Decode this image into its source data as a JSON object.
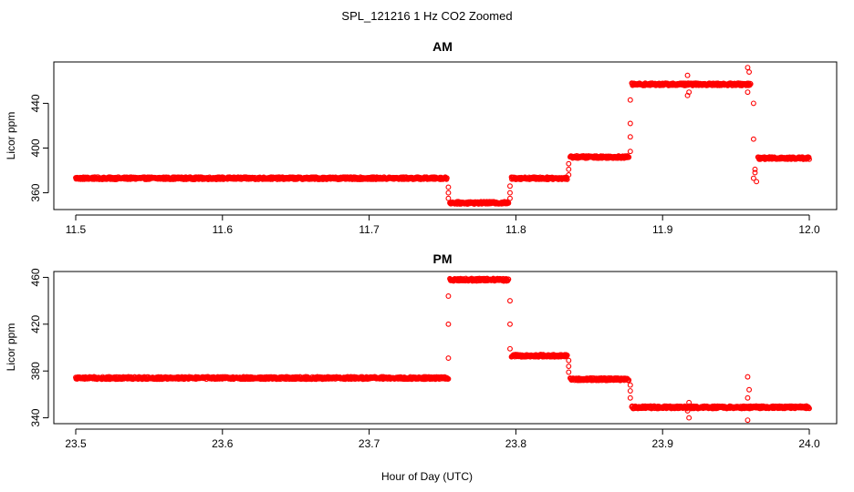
{
  "figure": {
    "title": "SPL_121216  1 Hz CO2 Zoomed",
    "xlabel": "Hour of Day (UTC)"
  },
  "chart_data": [
    {
      "type": "scatter",
      "title": "AM",
      "ylabel": "Licor ppm",
      "xlim": [
        11.5,
        12.0
      ],
      "ylim": [
        345,
        477
      ],
      "xticks": [
        "11.5",
        "11.6",
        "11.7",
        "11.8",
        "11.9",
        "12.0"
      ],
      "yticks": [
        "360",
        "400",
        "440"
      ],
      "series_color": "#ff0000",
      "levels": [
        {
          "x_start": 11.5,
          "x_end": 11.753,
          "y": 373
        },
        {
          "x_start": 11.755,
          "x_end": 11.795,
          "y": 351
        },
        {
          "x_start": 11.797,
          "x_end": 11.835,
          "y": 373
        },
        {
          "x_start": 11.837,
          "x_end": 11.877,
          "y": 392
        },
        {
          "x_start": 11.879,
          "x_end": 11.96,
          "y": 457
        },
        {
          "x_start": 11.965,
          "x_end": 12.0,
          "y": 391
        }
      ],
      "transitions": [
        {
          "x": 11.754,
          "y": [
            365,
            360,
            355
          ]
        },
        {
          "x": 11.796,
          "y": [
            355,
            360,
            366
          ]
        },
        {
          "x": 11.836,
          "y": [
            376,
            381,
            386
          ]
        },
        {
          "x": 11.878,
          "y": [
            397,
            410,
            422,
            443
          ]
        },
        {
          "x": 11.962,
          "y": [
            440,
            408,
            373
          ]
        }
      ],
      "outliers": [
        {
          "x": 11.917,
          "y": 465
        },
        {
          "x": 11.917,
          "y": 447
        },
        {
          "x": 11.918,
          "y": 450
        },
        {
          "x": 11.958,
          "y": 472
        },
        {
          "x": 11.959,
          "y": 468
        },
        {
          "x": 11.958,
          "y": 450
        },
        {
          "x": 11.963,
          "y": 378
        },
        {
          "x": 11.964,
          "y": 370
        },
        {
          "x": 11.963,
          "y": 381
        }
      ]
    },
    {
      "type": "scatter",
      "title": "PM",
      "ylabel": "Licor ppm",
      "xlim": [
        23.5,
        24.0
      ],
      "ylim": [
        335,
        465
      ],
      "xticks": [
        "23.5",
        "23.6",
        "23.7",
        "23.8",
        "23.9",
        "24.0"
      ],
      "yticks": [
        "340",
        "380",
        "420",
        "460"
      ],
      "series_color": "#ff0000",
      "levels": [
        {
          "x_start": 23.5,
          "x_end": 23.754,
          "y": 374
        },
        {
          "x_start": 23.755,
          "x_end": 23.795,
          "y": 458
        },
        {
          "x_start": 23.797,
          "x_end": 23.835,
          "y": 393
        },
        {
          "x_start": 23.837,
          "x_end": 23.877,
          "y": 373
        },
        {
          "x_start": 23.879,
          "x_end": 24.0,
          "y": 349
        }
      ],
      "transitions": [
        {
          "x": 23.754,
          "y": [
            391,
            420,
            444
          ]
        },
        {
          "x": 23.796,
          "y": [
            440,
            420,
            399
          ]
        },
        {
          "x": 23.836,
          "y": [
            389,
            384,
            379
          ]
        },
        {
          "x": 23.878,
          "y": [
            368,
            363,
            357
          ]
        }
      ],
      "outliers": [
        {
          "x": 23.918,
          "y": 353
        },
        {
          "x": 23.918,
          "y": 340
        },
        {
          "x": 23.917,
          "y": 346
        },
        {
          "x": 23.958,
          "y": 375
        },
        {
          "x": 23.959,
          "y": 364
        },
        {
          "x": 23.958,
          "y": 357
        },
        {
          "x": 23.958,
          "y": 338
        }
      ]
    }
  ]
}
